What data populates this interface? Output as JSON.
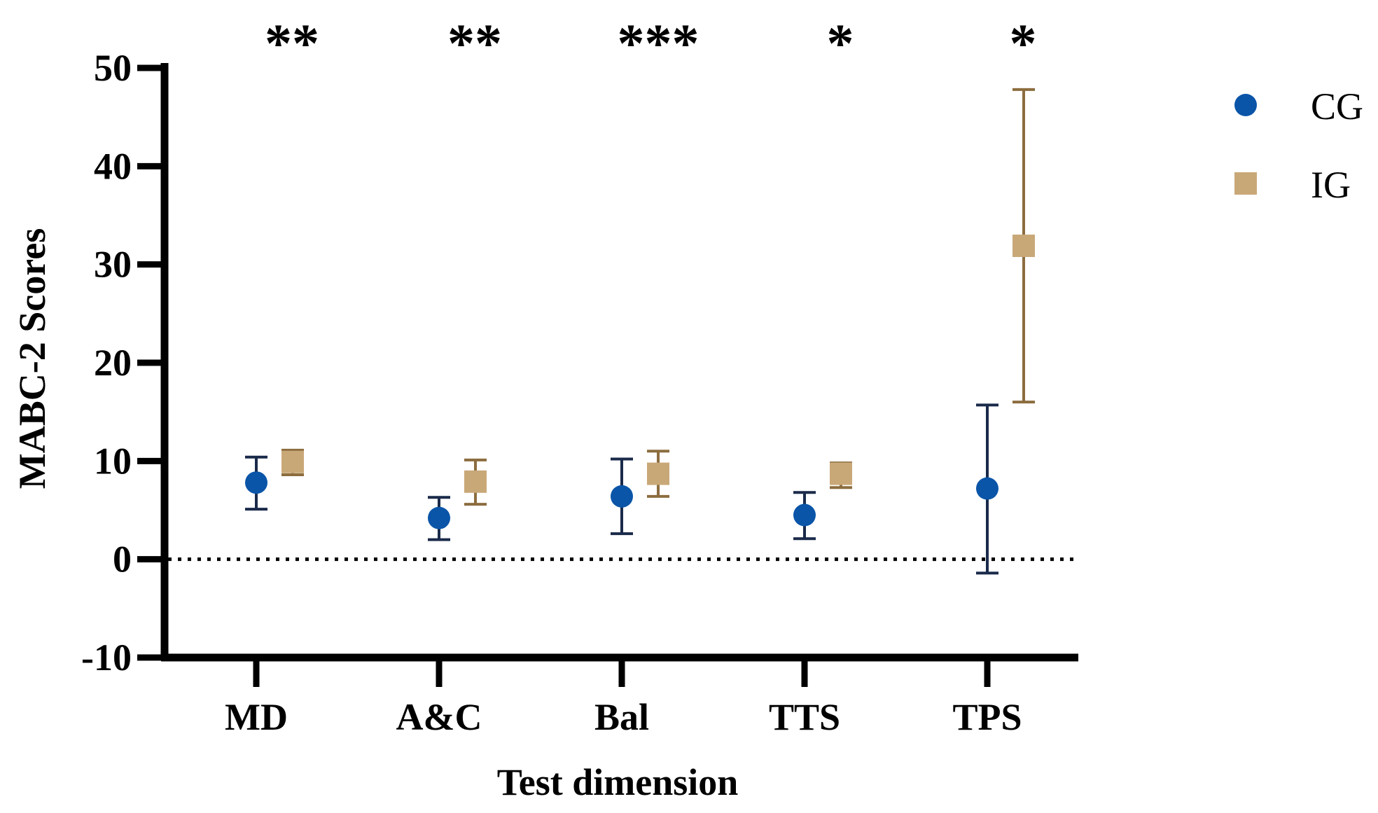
{
  "chart_data": {
    "type": "scatter",
    "title": "",
    "xlabel": "Test dimension",
    "ylabel": "MABC-2 Scores",
    "ylim": [
      -10,
      50
    ],
    "yticks": [
      -10,
      0,
      10,
      20,
      30,
      40,
      50
    ],
    "ytick_labels": [
      "-10",
      "0",
      "10",
      "20",
      "30",
      "40",
      "50"
    ],
    "categories": [
      "MD",
      "A&C",
      "Bal",
      "TTS",
      "TPS"
    ],
    "reference_line": {
      "y": 0,
      "style": "dotted"
    },
    "significance": [
      "**",
      "**",
      "***",
      "*",
      "*"
    ],
    "legend_position": "top-right",
    "series": [
      {
        "name": "CG",
        "marker": "circle",
        "color": "#0a55a8",
        "error_color": "#1a2a4a",
        "values": [
          7.8,
          4.2,
          6.4,
          4.5,
          7.2
        ],
        "err_low": [
          5.1,
          2.0,
          2.6,
          2.1,
          -1.4
        ],
        "err_high": [
          10.4,
          6.3,
          10.2,
          6.8,
          15.7
        ]
      },
      {
        "name": "IG",
        "marker": "square",
        "color": "#c9a878",
        "error_color": "#8c6d3f",
        "values": [
          9.9,
          7.9,
          8.7,
          8.7,
          31.9
        ],
        "err_low": [
          8.6,
          5.6,
          6.4,
          7.3,
          16.0
        ],
        "err_high": [
          11.1,
          10.1,
          11.0,
          9.8,
          47.8
        ]
      }
    ]
  }
}
